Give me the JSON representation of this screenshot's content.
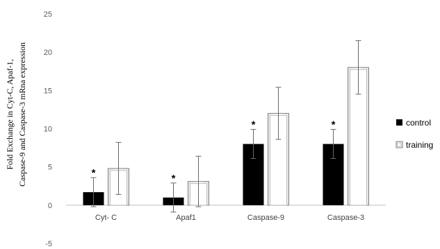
{
  "chart_data": {
    "type": "bar",
    "title": "",
    "ylabel": [
      "Fold Exchange in Cyt-C, Apaf-1,",
      "Caspase-9 and Caspase-3 mRna expression"
    ],
    "xlabel": "",
    "ylim": [
      -5,
      25
    ],
    "yticks": [
      -5,
      0,
      5,
      10,
      15,
      20,
      25
    ],
    "categories": [
      "Cyt- C",
      "Apaf1",
      "Caspase-9",
      "Caspase-3"
    ],
    "series": [
      {
        "name": "control",
        "values": [
          1.7,
          1.0,
          8.0,
          8.0
        ],
        "error": [
          1.9,
          1.9,
          1.9,
          1.9
        ],
        "color": "#000000"
      },
      {
        "name": "training",
        "values": [
          4.8,
          3.1,
          12.0,
          18.0
        ],
        "error": [
          3.4,
          3.3,
          3.4,
          3.5
        ],
        "color": "#ffffff"
      }
    ],
    "significance_marker": "*",
    "legend_position": "right",
    "grid": false
  }
}
